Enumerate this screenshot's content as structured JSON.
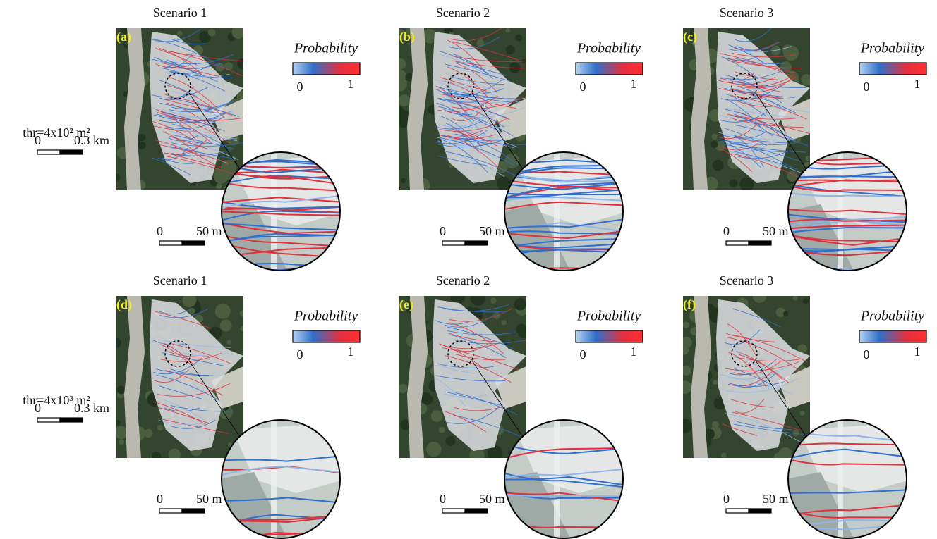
{
  "rows": [
    {
      "threshold": "thr=4x10² m²",
      "scale_bar": {
        "zero": "0",
        "length": "0.3 km"
      },
      "panels": [
        {
          "title": "Scenario 1",
          "letter": "(a)",
          "legend": {
            "title": "Probability",
            "min": "0",
            "max": "1"
          },
          "zoom_scale": {
            "zero": "0",
            "length": "50 m"
          }
        },
        {
          "title": "Scenario 2",
          "letter": "(b)",
          "legend": {
            "title": "Probability",
            "min": "0",
            "max": "1"
          },
          "zoom_scale": {
            "zero": "0",
            "length": "50 m"
          }
        },
        {
          "title": "Scenario 3",
          "letter": "(c)",
          "legend": {
            "title": "Probability",
            "min": "0",
            "max": "1"
          },
          "zoom_scale": {
            "zero": "0",
            "length": "50 m"
          }
        }
      ]
    },
    {
      "threshold": "thr=4x10³ m²",
      "scale_bar": {
        "zero": "0",
        "length": "0.3 km"
      },
      "panels": [
        {
          "title": "Scenario 1",
          "letter": "(d)",
          "legend": {
            "title": "Probability",
            "min": "0",
            "max": "1"
          },
          "zoom_scale": {
            "zero": "0",
            "length": "50 m"
          }
        },
        {
          "title": "Scenario 2",
          "letter": "(e)",
          "legend": {
            "title": "Probability",
            "min": "0",
            "max": "1"
          },
          "zoom_scale": {
            "zero": "0",
            "length": "50 m"
          }
        },
        {
          "title": "Scenario 3",
          "letter": "(f)",
          "legend": {
            "title": "Probability",
            "min": "0",
            "max": "1"
          },
          "zoom_scale": {
            "zero": "0",
            "length": "50 m"
          }
        }
      ]
    }
  ]
}
